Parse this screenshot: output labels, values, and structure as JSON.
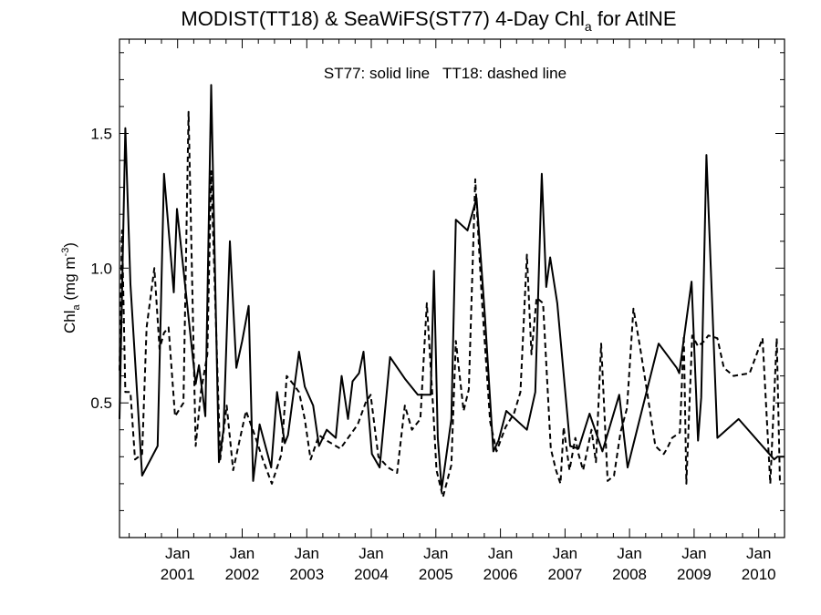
{
  "chart_data": {
    "type": "line",
    "title": {
      "main": "MODIST(TT18) & SeaWiFS(ST77) 4-Day Chl",
      "sub": "a",
      "tail": " for AtlNE"
    },
    "ylabel": {
      "main": "Chl",
      "sub": "a",
      "unit_open": " (mg m",
      "unit_sup": "-3",
      "unit_close": ")"
    },
    "annotation": "ST77: solid line   TT18: dashed line",
    "xlim": [
      2000.1,
      2010.4
    ],
    "ylim": [
      0.0,
      1.85
    ],
    "yticks": [
      0.5,
      1.0,
      1.5
    ],
    "ytick_labels": [
      "0.5",
      "1.0",
      "1.5"
    ],
    "xticks": [
      2001.0,
      2002.0,
      2003.0,
      2004.0,
      2005.0,
      2006.0,
      2007.0,
      2008.0,
      2009.0,
      2010.0
    ],
    "xtick_labels_top": [
      "Jan",
      "Jan",
      "Jan",
      "Jan",
      "Jan",
      "Jan",
      "Jan",
      "Jan",
      "Jan",
      "Jan"
    ],
    "xtick_labels_bottom": [
      "2001",
      "2002",
      "2003",
      "2004",
      "2005",
      "2006",
      "2007",
      "2008",
      "2009",
      "2010"
    ],
    "series": [
      {
        "name": "ST77",
        "style": "solid",
        "color": "#000000",
        "x": [
          2000.1,
          2000.19,
          2000.27,
          2000.45,
          2000.69,
          2000.79,
          2000.94,
          2000.99,
          2001.28,
          2001.33,
          2001.43,
          2001.52,
          2001.64,
          2001.71,
          2001.81,
          2001.91,
          2002.0,
          2002.1,
          2002.17,
          2002.27,
          2002.45,
          2002.54,
          2002.61,
          2002.66,
          2002.71,
          2002.88,
          2002.97,
          2003.1,
          2003.19,
          2003.31,
          2003.45,
          2003.54,
          2003.64,
          2003.71,
          2003.81,
          2003.88,
          2004.01,
          2004.13,
          2004.29,
          2004.52,
          2004.72,
          2004.92,
          2004.97,
          2005.03,
          2005.09,
          2005.24,
          2005.31,
          2005.49,
          2005.63,
          2005.76,
          2005.89,
          2005.97,
          2006.09,
          2006.41,
          2006.54,
          2006.64,
          2006.71,
          2006.77,
          2006.88,
          2007.08,
          2007.21,
          2007.38,
          2007.58,
          2007.84,
          2007.97,
          2008.45,
          2008.73,
          2008.77,
          2008.96,
          2009.06,
          2009.11,
          2009.19,
          2009.36,
          2009.69,
          2010.24,
          2010.29,
          2010.4
        ],
        "y": [
          0.44,
          1.52,
          0.94,
          0.23,
          0.34,
          1.35,
          0.91,
          1.22,
          0.57,
          0.64,
          0.45,
          1.68,
          0.28,
          0.4,
          1.1,
          0.63,
          0.73,
          0.86,
          0.21,
          0.42,
          0.26,
          0.54,
          0.43,
          0.35,
          0.38,
          0.69,
          0.56,
          0.49,
          0.34,
          0.4,
          0.37,
          0.6,
          0.44,
          0.58,
          0.61,
          0.69,
          0.31,
          0.26,
          0.67,
          0.59,
          0.53,
          0.53,
          0.99,
          0.37,
          0.18,
          0.44,
          1.18,
          1.14,
          1.26,
          0.82,
          0.32,
          0.36,
          0.47,
          0.4,
          0.54,
          1.35,
          0.93,
          1.04,
          0.87,
          0.34,
          0.33,
          0.46,
          0.32,
          0.53,
          0.26,
          0.72,
          0.63,
          0.61,
          0.95,
          0.36,
          0.52,
          1.42,
          0.37,
          0.44,
          0.29,
          0.3,
          0.3
        ]
      },
      {
        "name": "TT18",
        "style": "dashed",
        "color": "#000000",
        "x": [
          2000.1,
          2000.14,
          2000.19,
          2000.27,
          2000.34,
          2000.45,
          2000.52,
          2000.64,
          2000.72,
          2000.79,
          2000.86,
          2000.96,
          2001.09,
          2001.17,
          2001.28,
          2001.36,
          2001.46,
          2001.52,
          2001.66,
          2001.76,
          2001.86,
          2001.96,
          2002.06,
          2002.21,
          2002.32,
          2002.46,
          2002.61,
          2002.69,
          2002.79,
          2002.88,
          2002.97,
          2003.06,
          2003.19,
          2003.31,
          2003.52,
          2003.79,
          2003.91,
          2003.99,
          2004.11,
          2004.26,
          2004.4,
          2004.52,
          2004.63,
          2004.76,
          2004.86,
          2004.96,
          2005.01,
          2005.11,
          2005.24,
          2005.31,
          2005.43,
          2005.51,
          2005.61,
          2005.71,
          2005.84,
          2005.94,
          2006.08,
          2006.21,
          2006.31,
          2006.41,
          2006.48,
          2006.56,
          2006.66,
          2006.78,
          2006.86,
          2006.93,
          2006.98,
          2007.07,
          2007.16,
          2007.21,
          2007.28,
          2007.41,
          2007.48,
          2007.56,
          2007.66,
          2007.76,
          2007.86,
          2007.96,
          2008.06,
          2008.16,
          2008.26,
          2008.4,
          2008.53,
          2008.58,
          2008.66,
          2008.72,
          2008.78,
          2008.84,
          2008.88,
          2008.97,
          2009.06,
          2009.16,
          2009.22,
          2009.36,
          2009.46,
          2009.61,
          2009.86,
          2010.06,
          2010.18,
          2010.28,
          2010.33
        ],
        "y": [
          0.62,
          1.14,
          0.54,
          0.54,
          0.29,
          0.31,
          0.78,
          1.0,
          0.7,
          0.76,
          0.78,
          0.45,
          0.5,
          1.58,
          0.34,
          0.54,
          0.68,
          1.36,
          0.29,
          0.49,
          0.25,
          0.36,
          0.47,
          0.37,
          0.29,
          0.2,
          0.31,
          0.6,
          0.57,
          0.54,
          0.44,
          0.29,
          0.38,
          0.36,
          0.33,
          0.42,
          0.5,
          0.53,
          0.3,
          0.26,
          0.24,
          0.49,
          0.4,
          0.44,
          0.87,
          0.47,
          0.25,
          0.15,
          0.27,
          0.73,
          0.47,
          0.55,
          1.33,
          0.89,
          0.43,
          0.32,
          0.41,
          0.46,
          0.54,
          1.05,
          0.68,
          0.89,
          0.87,
          0.33,
          0.25,
          0.2,
          0.41,
          0.25,
          0.37,
          0.31,
          0.25,
          0.4,
          0.28,
          0.72,
          0.21,
          0.23,
          0.39,
          0.48,
          0.85,
          0.71,
          0.56,
          0.34,
          0.31,
          0.33,
          0.37,
          0.38,
          0.39,
          0.75,
          0.2,
          0.75,
          0.71,
          0.73,
          0.75,
          0.74,
          0.63,
          0.6,
          0.61,
          0.74,
          0.2,
          0.74,
          0.2
        ]
      }
    ]
  }
}
